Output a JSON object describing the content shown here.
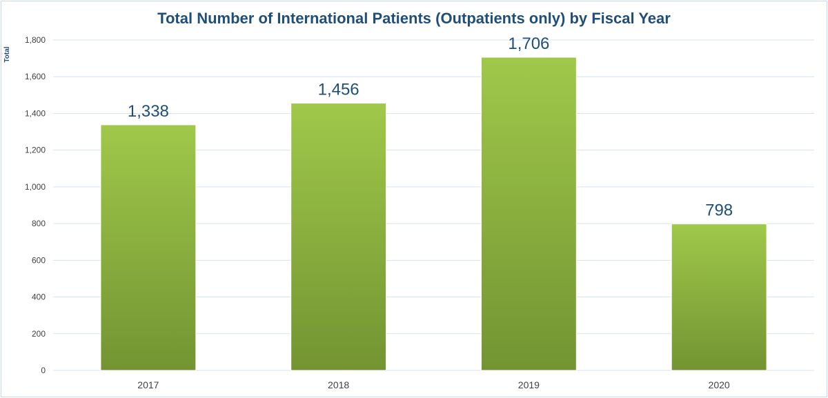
{
  "chart_data": {
    "type": "bar",
    "title": "Total Number of International Patients (Outpatients only) by Fiscal Year",
    "xlabel": "",
    "ylabel": "Total",
    "categories": [
      "2017",
      "2018",
      "2019",
      "2020"
    ],
    "values": [
      1338,
      1456,
      1706,
      798
    ],
    "data_labels": [
      "1,338",
      "1,456",
      "1,706",
      "798"
    ],
    "ylim": [
      0,
      1800
    ],
    "yticks": [
      0,
      200,
      400,
      600,
      800,
      1000,
      1200,
      1400,
      1600,
      1800
    ],
    "ytick_labels": [
      "0",
      "200",
      "400",
      "600",
      "800",
      "1,000",
      "1,200",
      "1,400",
      "1,600",
      "1,800"
    ],
    "grid": true,
    "legend": "none",
    "colors": {
      "bar_top": "#a0c84a",
      "bar_bottom": "#739432",
      "title": "#1f4e79",
      "data_label": "#1f4e79",
      "gridline": "#d6e3f0",
      "axis_text": "#404040"
    }
  }
}
